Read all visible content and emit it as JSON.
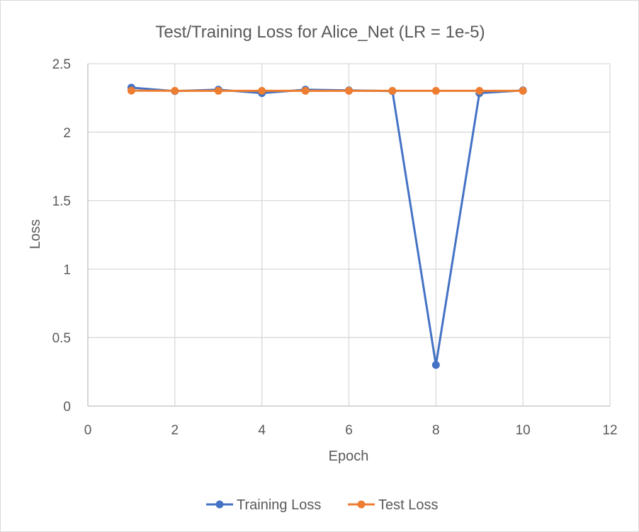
{
  "chart_data": {
    "type": "scatter",
    "title": "Test/Training Loss for Alice_Net (LR = 1e-5)",
    "xlabel": "Epoch",
    "ylabel": "Loss",
    "xlim": [
      0,
      12
    ],
    "ylim": [
      0,
      2.5
    ],
    "xticks": [
      0,
      2,
      4,
      6,
      8,
      10,
      12
    ],
    "yticks": [
      0,
      0.5,
      1,
      1.5,
      2,
      2.5
    ],
    "xtick_labels": [
      "0",
      "2",
      "4",
      "6",
      "8",
      "10",
      "12"
    ],
    "ytick_labels": [
      "0",
      "0.5",
      "1",
      "1.5",
      "2",
      "2.5"
    ],
    "grid": true,
    "legend_position": "bottom",
    "series": [
      {
        "name": "Training Loss",
        "color": "#4472C4",
        "x": [
          1,
          2,
          3,
          4,
          5,
          6,
          7,
          8,
          9,
          10
        ],
        "y": [
          2.325,
          2.3,
          2.31,
          2.285,
          2.31,
          2.305,
          2.3,
          0.3,
          2.285,
          2.305
        ]
      },
      {
        "name": "Test Loss",
        "color": "#ED7D31",
        "x": [
          1,
          2,
          3,
          4,
          5,
          6,
          7,
          8,
          9,
          10
        ],
        "y": [
          2.303,
          2.302,
          2.302,
          2.302,
          2.302,
          2.302,
          2.302,
          2.302,
          2.302,
          2.302
        ]
      }
    ]
  }
}
